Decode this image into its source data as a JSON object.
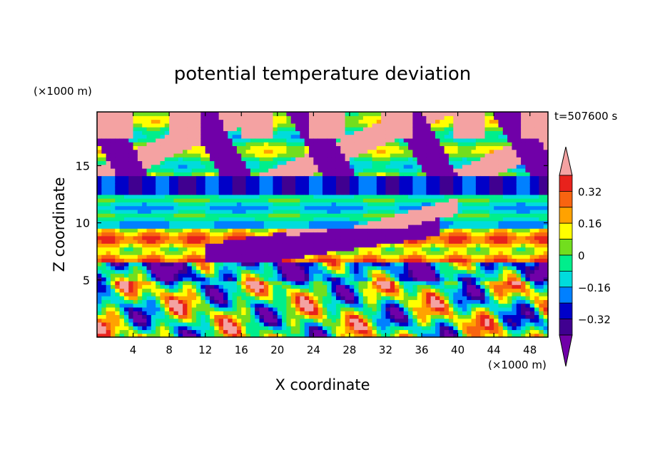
{
  "chart_data": {
    "type": "heatmap",
    "title": "potential temperature deviation",
    "xlabel": "X coordinate",
    "ylabel": "Z coordinate",
    "x_unit": "(×1000 m)",
    "y_unit": "(×1000 m)",
    "time_label": "t=507600 s",
    "xlim": [
      0,
      50
    ],
    "ylim": [
      0,
      19.7
    ],
    "x_ticks": [
      4,
      8,
      12,
      16,
      20,
      24,
      28,
      32,
      36,
      40,
      44,
      48
    ],
    "y_ticks": [
      5,
      10,
      15
    ],
    "colorbar": {
      "levels": [
        -0.4,
        -0.32,
        -0.24,
        -0.16,
        -0.08,
        0,
        0.08,
        0.16,
        0.24,
        0.32,
        0.4
      ],
      "labels": [
        "0.32",
        "0.16",
        "0",
        "−0.16",
        "−0.32"
      ],
      "label_values": [
        0.32,
        0.16,
        0,
        -0.16,
        -0.32
      ],
      "colors": [
        "#f4a2a2",
        "#e8221c",
        "#f86410",
        "#ffa200",
        "#ffff00",
        "#72de1e",
        "#00ee8c",
        "#00dcdc",
        "#0080ff",
        "#0000c8",
        "#400090",
        "#7000a8"
      ],
      "extend": "both"
    },
    "grid": false,
    "legend_position": "right"
  }
}
